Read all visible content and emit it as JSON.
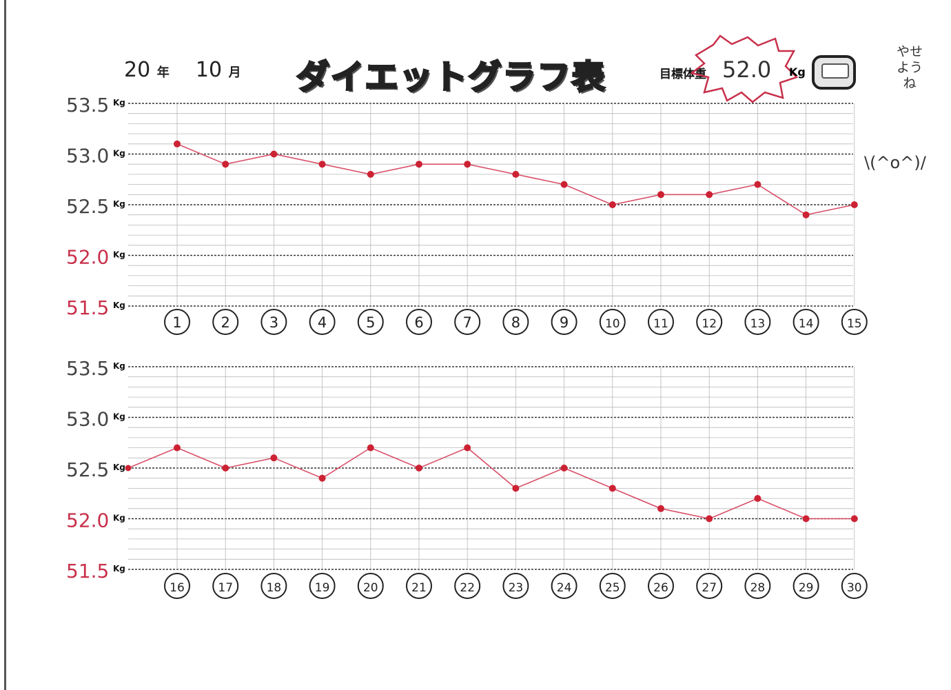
{
  "header": {
    "year": "20",
    "year_unit": "年",
    "month": "10",
    "month_unit": "月",
    "title": "ダイエットグラフ表",
    "goal_label": "目標体重",
    "goal_value": "52.0",
    "goal_unit": "Kg",
    "note": "やせようね",
    "kaomoji": "\\(^o^)/"
  },
  "colors": {
    "line": "#d9506a",
    "point": "#cc2233",
    "grid_major": "#333333",
    "grid_minor": "#b8b8b8",
    "red_label": "#c8304a"
  },
  "chart_data": [
    {
      "type": "line",
      "title": "",
      "xlabel": "",
      "ylabel": "",
      "y_unit": "Kg",
      "ylim": [
        51.5,
        53.5
      ],
      "y_ticks": [
        "53.5",
        "53.0",
        "52.5",
        "52.0",
        "51.5"
      ],
      "red_tick_labels": [
        "52.0",
        "51.5"
      ],
      "grid": true,
      "x": [
        "1",
        "2",
        "3",
        "4",
        "5",
        "6",
        "7",
        "8",
        "9",
        "10",
        "11",
        "12",
        "13",
        "14",
        "15"
      ],
      "series": [
        {
          "values": [
            53.1,
            52.9,
            53.0,
            52.9,
            52.8,
            52.9,
            52.9,
            52.8,
            52.7,
            52.5,
            52.6,
            52.6,
            52.7,
            52.4,
            52.5
          ]
        }
      ]
    },
    {
      "type": "line",
      "title": "",
      "xlabel": "",
      "ylabel": "",
      "y_unit": "Kg",
      "ylim": [
        51.5,
        53.5
      ],
      "y_ticks": [
        "53.5",
        "53.0",
        "52.5",
        "52.0",
        "51.5"
      ],
      "red_tick_labels": [
        "52.0",
        "51.5"
      ],
      "grid": true,
      "x": [
        "16",
        "17",
        "18",
        "19",
        "20",
        "21",
        "22",
        "23",
        "24",
        "25",
        "26",
        "27",
        "28",
        "29",
        "30"
      ],
      "start_value": 52.5,
      "series": [
        {
          "values": [
            52.7,
            52.5,
            52.6,
            52.4,
            52.7,
            52.5,
            52.7,
            52.3,
            52.5,
            52.3,
            52.1,
            52.0,
            52.2,
            52.0,
            52.0
          ]
        }
      ]
    }
  ]
}
